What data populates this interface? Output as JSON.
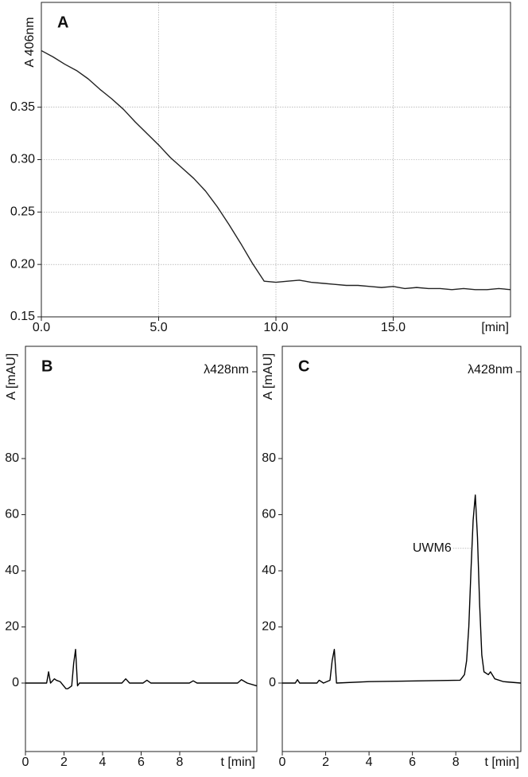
{
  "chart_data": [
    {
      "type": "line",
      "title": "A",
      "y_label": "A 406nm",
      "x_label": "[min]",
      "grid": true,
      "xlim": [
        0,
        20
      ],
      "ylim": [
        0.15,
        0.45
      ],
      "xticks": [
        {
          "value": 0,
          "label": "0.0"
        },
        {
          "value": 5,
          "label": "5.0"
        },
        {
          "value": 10,
          "label": "10.0"
        },
        {
          "value": 15,
          "label": "15.0"
        }
      ],
      "yticks": [
        {
          "value": 0.15,
          "label": "0.15"
        },
        {
          "value": 0.2,
          "label": "0.20"
        },
        {
          "value": 0.25,
          "label": "0.25"
        },
        {
          "value": 0.3,
          "label": "0.30"
        },
        {
          "value": 0.35,
          "label": "0.35"
        }
      ],
      "x": [
        0,
        0.5,
        1,
        1.5,
        2,
        2.5,
        3,
        3.5,
        4,
        4.5,
        5,
        5.5,
        6,
        6.5,
        7,
        7.5,
        8,
        8.5,
        9,
        9.5,
        10,
        10.5,
        11,
        11.5,
        12,
        12.5,
        13,
        13.5,
        14,
        14.5,
        15,
        15.5,
        16,
        16.5,
        17,
        17.5,
        18,
        18.5,
        19,
        19.5,
        20
      ],
      "series": [
        {
          "color": "#222222",
          "values": [
            0.404,
            0.398,
            0.391,
            0.385,
            0.377,
            0.367,
            0.358,
            0.348,
            0.336,
            0.325,
            0.314,
            0.302,
            0.292,
            0.282,
            0.27,
            0.255,
            0.238,
            0.22,
            0.201,
            0.184,
            0.183,
            0.184,
            0.185,
            0.183,
            0.182,
            0.181,
            0.18,
            0.18,
            0.179,
            0.178,
            0.179,
            0.177,
            0.178,
            0.177,
            0.177,
            0.176,
            0.177,
            0.176,
            0.176,
            0.177,
            0.176
          ]
        }
      ]
    },
    {
      "type": "line",
      "title": "B",
      "subtitle": "λ428nm",
      "y_label": "A [mAU]",
      "x_label": "t [min]",
      "grid": false,
      "xlim": [
        0,
        12
      ],
      "ylim": [
        -24.4,
        120
      ],
      "xticks": [
        0,
        2,
        4,
        6,
        8
      ],
      "yticks": [
        0,
        20,
        40,
        60,
        80
      ],
      "x": [
        0,
        1.1,
        1.2,
        1.3,
        1.5,
        1.6,
        1.8,
        2.1,
        2.2,
        2.4,
        2.5,
        2.6,
        2.7,
        2.8,
        3,
        5.0,
        5.2,
        5.4,
        6.1,
        6.3,
        6.5,
        8.5,
        8.7,
        8.9,
        11,
        11.2,
        11.5,
        12
      ],
      "series": [
        {
          "color": "#000000",
          "values": [
            0,
            0,
            4,
            0,
            1.5,
            1,
            0.5,
            -2,
            -2,
            -1,
            7,
            12,
            -1,
            0,
            0,
            0,
            1.5,
            0,
            0,
            1,
            0,
            0,
            0.8,
            0,
            0,
            1.2,
            0,
            -1
          ]
        }
      ]
    },
    {
      "type": "line",
      "title": "C",
      "subtitle": "λ428nm",
      "y_label": "A [mAU]",
      "x_label": "t [min]",
      "grid": false,
      "xlim": [
        0,
        11
      ],
      "ylim": [
        -24.4,
        120
      ],
      "xticks": [
        0,
        2,
        4,
        6,
        8
      ],
      "yticks": [
        0,
        20,
        40,
        60,
        80
      ],
      "x": [
        0,
        0.6,
        0.7,
        0.8,
        1.6,
        1.7,
        1.9,
        2.2,
        2.3,
        2.4,
        2.5,
        4,
        8.2,
        8.4,
        8.5,
        8.6,
        8.7,
        8.8,
        8.9,
        9.0,
        9.1,
        9.2,
        9.3,
        9.5,
        9.6,
        9.8,
        10.2,
        11
      ],
      "series": [
        {
          "color": "#000000",
          "values": [
            0,
            0,
            1.2,
            0,
            0,
            1,
            0,
            1,
            8,
            12,
            0,
            0.5,
            1,
            3,
            8,
            20,
            40,
            58,
            67,
            52,
            28,
            10,
            4,
            3,
            4,
            1.5,
            0.5,
            0
          ]
        }
      ],
      "annotations": [
        {
          "text": "UWM6",
          "x": 8.9,
          "y": 48
        }
      ]
    }
  ]
}
